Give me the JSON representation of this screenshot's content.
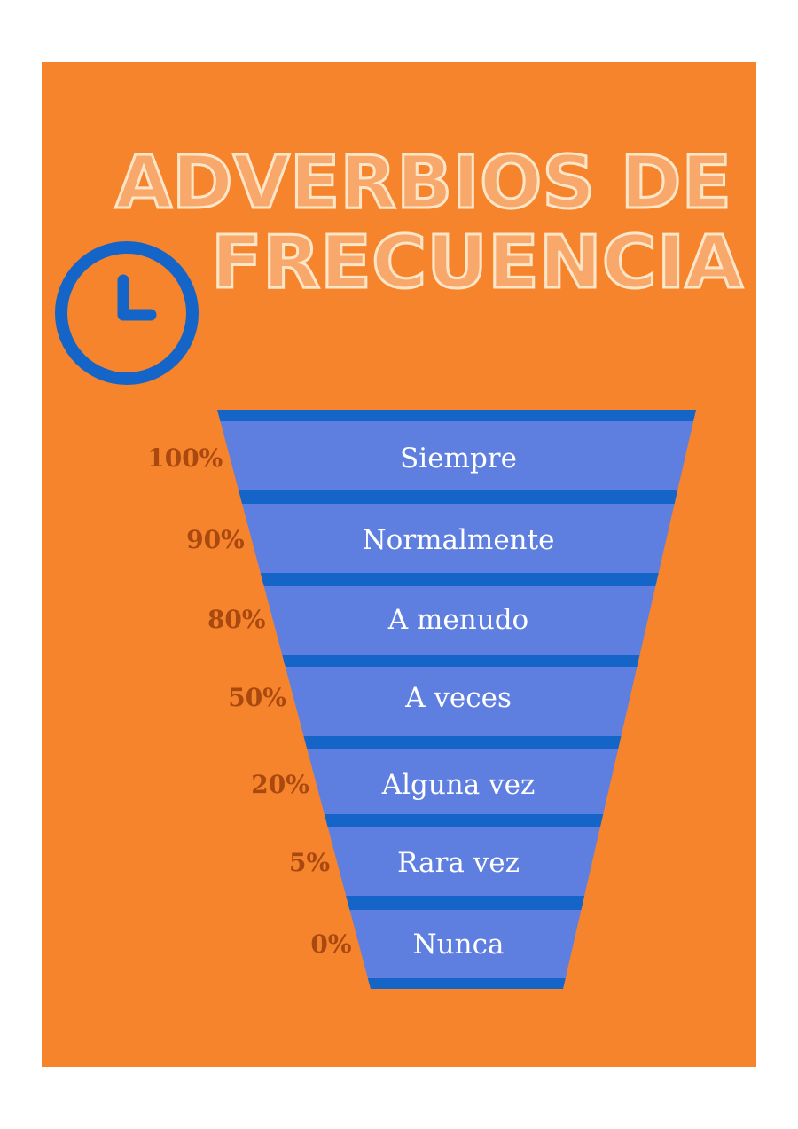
{
  "title": {
    "line1": "ADVERBIOS DE",
    "line2": "FRECUENCIA"
  },
  "icon": "clock-icon",
  "colors": {
    "background": "#F5842C",
    "funnel_light": "#5F7FE0",
    "funnel_dark": "#1565C8",
    "percent_text": "#A9480F",
    "title_fill": "#F7A86A",
    "title_outline": "#FDE6C8"
  },
  "funnel": [
    {
      "percent": "100%",
      "label": "Siempre"
    },
    {
      "percent": "90%",
      "label": "Normalmente"
    },
    {
      "percent": "80%",
      "label": "A menudo"
    },
    {
      "percent": "50%",
      "label": "A veces"
    },
    {
      "percent": "20%",
      "label": "Alguna vez"
    },
    {
      "percent": "5%",
      "label": "Rara vez"
    },
    {
      "percent": "0%",
      "label": "Nunca"
    }
  ]
}
